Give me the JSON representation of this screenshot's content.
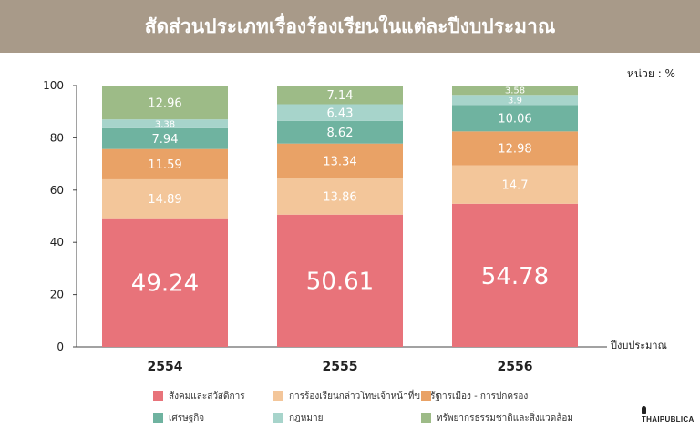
{
  "page": {
    "title": "สัดส่วนประเภทเรื่องร้องเรียนในแต่ละปีงบประมาณ",
    "unit_label": "หน่วย : %",
    "logo_text": "THAIPUBLICA"
  },
  "chart_data": {
    "type": "bar",
    "stacked": true,
    "categories": [
      "2554",
      "2555",
      "2556"
    ],
    "xlabel": "ปีงบประมาณ",
    "ylabel": "",
    "ylim": [
      0,
      100
    ],
    "yticks": [
      0,
      20,
      40,
      60,
      80,
      100
    ],
    "grid": false,
    "legend_position": "bottom",
    "series": [
      {
        "name": "สังคมและสวัสดิการ",
        "values": [
          49.24,
          50.61,
          54.78
        ],
        "color": "#e8737a"
      },
      {
        "name": "การร้องเรียนกล่าวโทษเจ้าหน้าที่ของรัฐ",
        "values": [
          14.89,
          13.86,
          14.7
        ],
        "color": "#f3c69a"
      },
      {
        "name": "การเมือง - การปกครอง",
        "values": [
          11.59,
          13.34,
          12.98
        ],
        "color": "#e9a266"
      },
      {
        "name": "เศรษฐกิจ",
        "values": [
          7.94,
          8.62,
          10.06
        ],
        "color": "#6fb3a0"
      },
      {
        "name": "กฎหมาย",
        "values": [
          3.38,
          6.43,
          3.9
        ],
        "color": "#a7d4cb"
      },
      {
        "name": "ทรัพยากรธรรมชาติและสิ่งแวดล้อม",
        "values": [
          12.96,
          7.14,
          3.58
        ],
        "color": "#9dbb87"
      }
    ]
  }
}
